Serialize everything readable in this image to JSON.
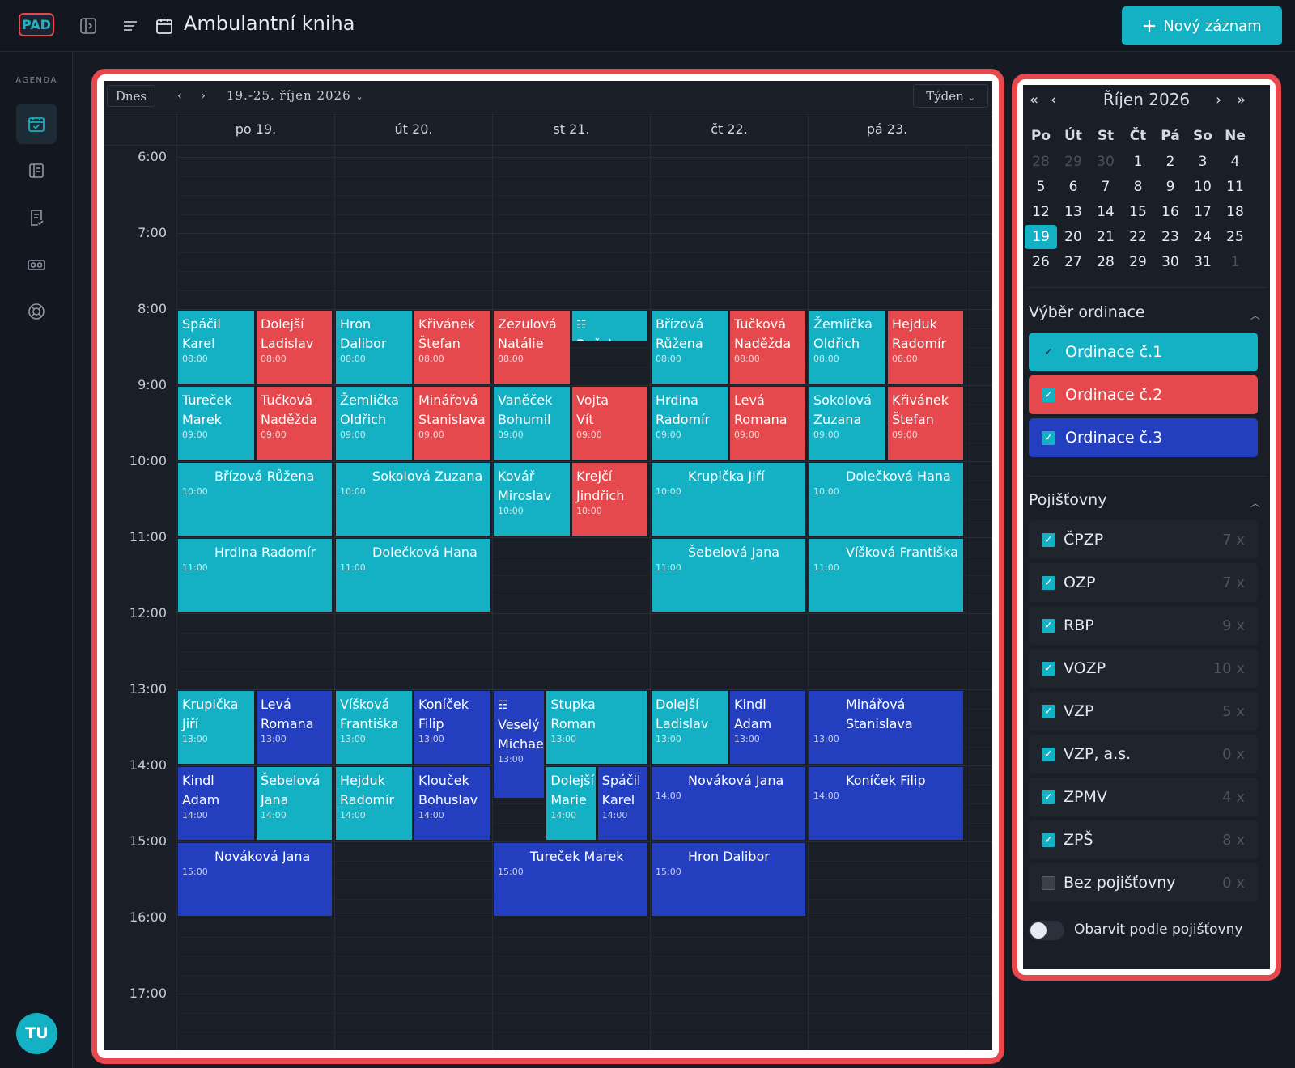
{
  "app": {
    "logo": "PAD",
    "title": "Ambulantní kniha",
    "new_button": "Nový záznam",
    "avatar": "TU",
    "sidebar_section": "AGENDA",
    "nav_icons": [
      "calendar-check-icon",
      "list-icon",
      "document-check-icon",
      "vr-glasses-icon",
      "lifebuoy-icon"
    ]
  },
  "toolbar": {
    "today": "Dnes",
    "prev": "‹",
    "next": "›",
    "range": "19.-25. říjen 2026",
    "view": "Týden"
  },
  "days": [
    "po 19.",
    "út 20.",
    "st 21.",
    "čt 22.",
    "pá 23."
  ],
  "hours": [
    "6:00",
    "7:00",
    "8:00",
    "9:00",
    "10:00",
    "11:00",
    "12:00",
    "13:00",
    "14:00",
    "15:00",
    "16:00",
    "17:00"
  ],
  "events": [
    {
      "day": 0,
      "start": 8,
      "dur": 1,
      "sub": 0,
      "subs": 2,
      "color": "c1",
      "name": "Spáčil\nKarel",
      "time": "08:00"
    },
    {
      "day": 0,
      "start": 8,
      "dur": 1,
      "sub": 1,
      "subs": 2,
      "color": "c2",
      "name": "Dolejší\nLadislav",
      "time": "08:00"
    },
    {
      "day": 1,
      "start": 8,
      "dur": 1,
      "sub": 0,
      "subs": 2,
      "color": "c1",
      "name": "Hron\nDalibor",
      "time": "08:00"
    },
    {
      "day": 1,
      "start": 8,
      "dur": 1,
      "sub": 1,
      "subs": 2,
      "color": "c2",
      "name": "Křivánek\nŠtefan",
      "time": "08:00"
    },
    {
      "day": 2,
      "start": 8,
      "dur": 1,
      "sub": 0,
      "subs": 2,
      "color": "c2",
      "name": "Zezulová\nNatálie",
      "time": "08:00"
    },
    {
      "day": 2,
      "start": 8,
      "dur": 0.45,
      "sub": 1,
      "subs": 2,
      "color": "c1",
      "name": "Boček\nRudolf",
      "time": "",
      "check": true
    },
    {
      "day": 3,
      "start": 8,
      "dur": 1,
      "sub": 0,
      "subs": 2,
      "color": "c1",
      "name": "Břízová\nRůžena",
      "time": "08:00"
    },
    {
      "day": 3,
      "start": 8,
      "dur": 1,
      "sub": 1,
      "subs": 2,
      "color": "c2",
      "name": "Tučková\nNaděžda",
      "time": "08:00"
    },
    {
      "day": 4,
      "start": 8,
      "dur": 1,
      "sub": 0,
      "subs": 2,
      "color": "c1",
      "name": "Žemlička\nOldřich",
      "time": "08:00"
    },
    {
      "day": 4,
      "start": 8,
      "dur": 1,
      "sub": 1,
      "subs": 2,
      "color": "c2",
      "name": "Hejduk\nRadomír",
      "time": "08:00"
    },
    {
      "day": 0,
      "start": 9,
      "dur": 1,
      "sub": 0,
      "subs": 2,
      "color": "c1",
      "name": "Tureček\nMarek",
      "time": "09:00"
    },
    {
      "day": 0,
      "start": 9,
      "dur": 1,
      "sub": 1,
      "subs": 2,
      "color": "c2",
      "name": "Tučková\nNaděžda",
      "time": "09:00"
    },
    {
      "day": 1,
      "start": 9,
      "dur": 1,
      "sub": 0,
      "subs": 2,
      "color": "c1",
      "name": "Žemlička\nOldřich",
      "time": "09:00"
    },
    {
      "day": 1,
      "start": 9,
      "dur": 1,
      "sub": 1,
      "subs": 2,
      "color": "c2",
      "name": "Minářová\nStanislava",
      "time": "09:00"
    },
    {
      "day": 2,
      "start": 9,
      "dur": 1,
      "sub": 0,
      "subs": 2,
      "color": "c1",
      "name": "Vaněček\nBohumil",
      "time": "09:00"
    },
    {
      "day": 2,
      "start": 9,
      "dur": 1,
      "sub": 1,
      "subs": 2,
      "color": "c2",
      "name": "Vojta\nVít",
      "time": "09:00"
    },
    {
      "day": 3,
      "start": 9,
      "dur": 1,
      "sub": 0,
      "subs": 2,
      "color": "c1",
      "name": "Hrdina\nRadomír",
      "time": "09:00"
    },
    {
      "day": 3,
      "start": 9,
      "dur": 1,
      "sub": 1,
      "subs": 2,
      "color": "c2",
      "name": "Levá\nRomana",
      "time": "09:00"
    },
    {
      "day": 4,
      "start": 9,
      "dur": 1,
      "sub": 0,
      "subs": 2,
      "color": "c1",
      "name": "Sokolová\nZuzana",
      "time": "09:00"
    },
    {
      "day": 4,
      "start": 9,
      "dur": 1,
      "sub": 1,
      "subs": 2,
      "color": "c2",
      "name": "Křivánek\nŠtefan",
      "time": "09:00"
    },
    {
      "day": 0,
      "start": 10,
      "dur": 1,
      "sub": 0,
      "subs": 1,
      "color": "c1",
      "name": "Břízová Růžena",
      "time": "10:00"
    },
    {
      "day": 1,
      "start": 10,
      "dur": 1,
      "sub": 0,
      "subs": 1,
      "color": "c1",
      "name": "Sokolová Zuzana",
      "time": "10:00"
    },
    {
      "day": 2,
      "start": 10,
      "dur": 1,
      "sub": 0,
      "subs": 2,
      "color": "c1",
      "name": "Kovář\nMiroslav",
      "time": "10:00"
    },
    {
      "day": 2,
      "start": 10,
      "dur": 1,
      "sub": 1,
      "subs": 2,
      "color": "c2",
      "name": "Krejčí\nJindřich",
      "time": "10:00"
    },
    {
      "day": 3,
      "start": 10,
      "dur": 1,
      "sub": 0,
      "subs": 1,
      "color": "c1",
      "name": "Krupička Jiří",
      "time": "10:00"
    },
    {
      "day": 4,
      "start": 10,
      "dur": 1,
      "sub": 0,
      "subs": 1,
      "color": "c1",
      "name": "Dolečková Hana",
      "time": "10:00"
    },
    {
      "day": 0,
      "start": 11,
      "dur": 1,
      "sub": 0,
      "subs": 1,
      "color": "c1",
      "name": "Hrdina Radomír",
      "time": "11:00"
    },
    {
      "day": 1,
      "start": 11,
      "dur": 1,
      "sub": 0,
      "subs": 1,
      "color": "c1",
      "name": "Dolečková Hana",
      "time": "11:00"
    },
    {
      "day": 3,
      "start": 11,
      "dur": 1,
      "sub": 0,
      "subs": 1,
      "color": "c1",
      "name": "Šebelová Jana",
      "time": "11:00"
    },
    {
      "day": 4,
      "start": 11,
      "dur": 1,
      "sub": 0,
      "subs": 1,
      "color": "c1",
      "name": "Víšková Františka",
      "time": "11:00"
    },
    {
      "day": 0,
      "start": 13,
      "dur": 1,
      "sub": 0,
      "subs": 2,
      "color": "c1",
      "name": "Krupička\nJiří",
      "time": "13:00"
    },
    {
      "day": 0,
      "start": 13,
      "dur": 1,
      "sub": 1,
      "subs": 2,
      "color": "c3",
      "name": "Levá\nRomana",
      "time": "13:00"
    },
    {
      "day": 1,
      "start": 13,
      "dur": 1,
      "sub": 0,
      "subs": 2,
      "color": "c1",
      "name": "Víšková\nFrantiška",
      "time": "13:00"
    },
    {
      "day": 1,
      "start": 13,
      "dur": 1,
      "sub": 1,
      "subs": 2,
      "color": "c3",
      "name": "Koníček\nFilip",
      "time": "13:00"
    },
    {
      "day": 2,
      "start": 13,
      "dur": 1.45,
      "sub": 0,
      "subs": 3,
      "color": "c3",
      "name": "Veselý\nMichae",
      "time": "13:00",
      "check": true
    },
    {
      "day": 2,
      "start": 13,
      "dur": 1,
      "sub": 1,
      "subs": 3,
      "span": 2,
      "color": "c1",
      "name": "Stupka\nRoman",
      "time": "13:00"
    },
    {
      "day": 3,
      "start": 13,
      "dur": 1,
      "sub": 0,
      "subs": 2,
      "color": "c1",
      "name": "Dolejší\nLadislav",
      "time": "13:00"
    },
    {
      "day": 3,
      "start": 13,
      "dur": 1,
      "sub": 1,
      "subs": 2,
      "color": "c3",
      "name": "Kindl\nAdam",
      "time": "13:00"
    },
    {
      "day": 4,
      "start": 13,
      "dur": 1,
      "sub": 0,
      "subs": 1,
      "color": "c3",
      "name": "Minářová Stanislava",
      "time": "13:00"
    },
    {
      "day": 0,
      "start": 14,
      "dur": 1,
      "sub": 0,
      "subs": 2,
      "color": "c3",
      "name": "Kindl\nAdam",
      "time": "14:00"
    },
    {
      "day": 0,
      "start": 14,
      "dur": 1,
      "sub": 1,
      "subs": 2,
      "color": "c1",
      "name": "Šebelová\nJana",
      "time": "14:00"
    },
    {
      "day": 1,
      "start": 14,
      "dur": 1,
      "sub": 0,
      "subs": 2,
      "color": "c1",
      "name": "Hejduk\nRadomír",
      "time": "14:00"
    },
    {
      "day": 1,
      "start": 14,
      "dur": 1,
      "sub": 1,
      "subs": 2,
      "color": "c3",
      "name": "Klouček\nBohuslav",
      "time": "14:00"
    },
    {
      "day": 2,
      "start": 14,
      "dur": 1,
      "sub": 1,
      "subs": 3,
      "color": "c1",
      "name": "Dolejší\nMarie",
      "time": "14:00"
    },
    {
      "day": 2,
      "start": 14,
      "dur": 1,
      "sub": 2,
      "subs": 3,
      "color": "c3",
      "name": "Spáčil\nKarel",
      "time": "14:00"
    },
    {
      "day": 3,
      "start": 14,
      "dur": 1,
      "sub": 0,
      "subs": 1,
      "color": "c3",
      "name": "Nováková Jana",
      "time": "14:00"
    },
    {
      "day": 4,
      "start": 14,
      "dur": 1,
      "sub": 0,
      "subs": 1,
      "color": "c3",
      "name": "Koníček Filip",
      "time": "14:00"
    },
    {
      "day": 0,
      "start": 15,
      "dur": 1,
      "sub": 0,
      "subs": 1,
      "color": "c3",
      "name": "Nováková Jana",
      "time": "15:00"
    },
    {
      "day": 2,
      "start": 15,
      "dur": 1,
      "sub": 0,
      "subs": 1,
      "color": "c3",
      "name": "Tureček Marek",
      "time": "15:00"
    },
    {
      "day": 3,
      "start": 15,
      "dur": 1,
      "sub": 0,
      "subs": 1,
      "color": "c3",
      "name": "Hron Dalibor",
      "time": "15:00"
    }
  ],
  "mini_calendar": {
    "title": "Říjen 2026",
    "nav": [
      "«",
      "‹",
      "›",
      "»"
    ],
    "weekdays": [
      "Po",
      "Út",
      "St",
      "Čt",
      "Pá",
      "So",
      "Ne"
    ],
    "weeks": [
      [
        "28",
        "29",
        "30",
        "1",
        "2",
        "3",
        "4"
      ],
      [
        "5",
        "6",
        "7",
        "8",
        "9",
        "10",
        "11"
      ],
      [
        "12",
        "13",
        "14",
        "15",
        "16",
        "17",
        "18"
      ],
      [
        "19",
        "20",
        "21",
        "22",
        "23",
        "24",
        "25"
      ],
      [
        "26",
        "27",
        "28",
        "29",
        "30",
        "31",
        "1"
      ]
    ],
    "selected": "19"
  },
  "ordinace": {
    "title": "Výběr ordinace",
    "items": [
      {
        "label": "Ordinace č.1",
        "color": "#13b1c3"
      },
      {
        "label": "Ordinace č.2",
        "color": "#e5484d"
      },
      {
        "label": "Ordinace č.3",
        "color": "#233fbf"
      }
    ]
  },
  "pojistovny": {
    "title": "Pojišťovny",
    "items": [
      {
        "label": "ČPZP",
        "count": "7 x",
        "checked": true
      },
      {
        "label": "OZP",
        "count": "7 x",
        "checked": true
      },
      {
        "label": "RBP",
        "count": "9 x",
        "checked": true
      },
      {
        "label": "VOZP",
        "count": "10 x",
        "checked": true
      },
      {
        "label": "VZP",
        "count": "5 x",
        "checked": true
      },
      {
        "label": "VZP, a.s.",
        "count": "0 x",
        "checked": true
      },
      {
        "label": "ZPMV",
        "count": "4 x",
        "checked": true
      },
      {
        "label": "ZPŠ",
        "count": "8 x",
        "checked": true
      },
      {
        "label": "Bez pojišťovny",
        "count": "0 x",
        "checked": false
      }
    ]
  },
  "toggle_label": "Obarvit podle pojišťovny"
}
